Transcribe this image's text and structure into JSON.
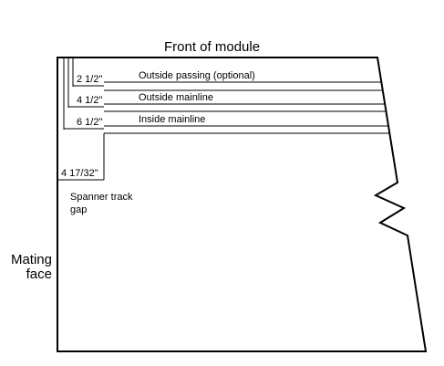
{
  "labels": {
    "front": "Front of module",
    "mating_line1": "Mating",
    "mating_line2": "face",
    "spanner_line1": "Spanner track",
    "spanner_line2": "gap"
  },
  "tracks": [
    {
      "dimension": "2 1/2\"",
      "name": "Outside passing (optional)"
    },
    {
      "dimension": "4 1/2\"",
      "name": "Outside mainline"
    },
    {
      "dimension": "6 1/2\"",
      "name": "Inside mainline"
    }
  ],
  "gap_dimension": "4 17/32\""
}
